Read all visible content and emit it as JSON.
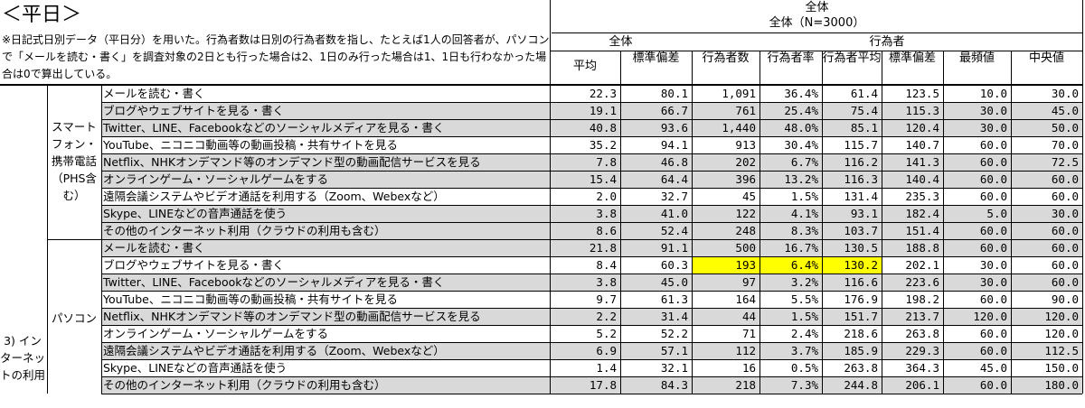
{
  "title": "＜平日＞",
  "note": "※日記式日別データ（平日分）を用いた。行為者数は日別の行為者数を指し、たとえば1人の回答者が、パソコンで「メールを読む・書く」を調査対象の2日とも行った場合は2、1日のみ行った場合は1、1日も行わなかった場合は0で算出している。",
  "header": {
    "all": "全体",
    "all_n": "全体（N=3000）",
    "sub_all": "全体",
    "sub_actor": "行為者",
    "cols": [
      "平均",
      "標準偏差",
      "行為者数",
      "行為者率",
      "行為者平均",
      "標準偏差",
      "最頻値",
      "中央値"
    ]
  },
  "section_label": "3) インターネットの利用",
  "groups": [
    {
      "label": "スマートフォン・携帯電話（PHS含む）",
      "rows": [
        {
          "item": "メールを読む・書く",
          "v": [
            "22.3",
            "80.1",
            "1,091",
            "36.4%",
            "61.4",
            "123.5",
            "10.0",
            "30.0"
          ]
        },
        {
          "item": "ブログやウェブサイトを見る・書く",
          "v": [
            "19.1",
            "66.7",
            "761",
            "25.4%",
            "75.4",
            "115.3",
            "30.0",
            "45.0"
          ]
        },
        {
          "item": "Twitter、LINE、Facebookなどのソーシャルメディアを見る・書く",
          "v": [
            "40.8",
            "93.6",
            "1,440",
            "48.0%",
            "85.1",
            "120.4",
            "30.0",
            "50.0"
          ]
        },
        {
          "item": "YouTube、ニコニコ動画等の動画投稿・共有サイトを見る",
          "v": [
            "35.2",
            "94.1",
            "913",
            "30.4%",
            "115.7",
            "140.7",
            "60.0",
            "70.0"
          ]
        },
        {
          "item": "Netflix、NHKオンデマンド等のオンデマンド型の動画配信サービスを見る",
          "v": [
            "7.8",
            "46.8",
            "202",
            "6.7%",
            "116.2",
            "141.3",
            "60.0",
            "72.5"
          ]
        },
        {
          "item": "オンラインゲーム・ソーシャルゲームをする",
          "v": [
            "15.4",
            "64.4",
            "396",
            "13.2%",
            "116.3",
            "140.4",
            "60.0",
            "60.0"
          ]
        },
        {
          "item": "遠隔会議システムやビデオ通話を利用する（Zoom、Webexなど）",
          "v": [
            "2.0",
            "32.7",
            "45",
            "1.5%",
            "131.4",
            "235.3",
            "60.0",
            "60.0"
          ]
        },
        {
          "item": "Skype、LINEなどの音声通話を使う",
          "v": [
            "3.8",
            "41.0",
            "122",
            "4.1%",
            "93.1",
            "182.4",
            "5.0",
            "30.0"
          ]
        },
        {
          "item": "その他のインターネット利用（クラウドの利用も含む）",
          "v": [
            "8.6",
            "52.4",
            "248",
            "8.3%",
            "103.7",
            "151.4",
            "60.0",
            "60.0"
          ]
        }
      ]
    },
    {
      "label": "パソコン",
      "rows": [
        {
          "item": "メールを読む・書く",
          "v": [
            "21.8",
            "91.1",
            "500",
            "16.7%",
            "130.5",
            "188.8",
            "60.0",
            "60.0"
          ]
        },
        {
          "item": "ブログやウェブサイトを見る・書く",
          "v": [
            "8.4",
            "60.3",
            "193",
            "6.4%",
            "130.2",
            "202.1",
            "30.0",
            "60.0"
          ]
        },
        {
          "item": "Twitter、LINE、Facebookなどのソーシャルメディアを見る・書く",
          "v": [
            "3.8",
            "45.0",
            "97",
            "3.2%",
            "116.6",
            "223.6",
            "30.0",
            "60.0"
          ]
        },
        {
          "item": "YouTube、ニコニコ動画等の動画投稿・共有サイトを見る",
          "v": [
            "9.7",
            "61.3",
            "164",
            "5.5%",
            "176.9",
            "198.2",
            "60.0",
            "90.0"
          ]
        },
        {
          "item": "Netflix、NHKオンデマンド等のオンデマンド型の動画配信サービスを見る",
          "v": [
            "2.2",
            "31.4",
            "44",
            "1.5%",
            "151.7",
            "213.7",
            "120.0",
            "120.0"
          ]
        },
        {
          "item": "オンラインゲーム・ソーシャルゲームをする",
          "v": [
            "5.2",
            "52.2",
            "71",
            "2.4%",
            "218.6",
            "263.8",
            "60.0",
            "120.0"
          ]
        },
        {
          "item": "遠隔会議システムやビデオ通話を利用する（Zoom、Webexなど）",
          "v": [
            "6.9",
            "57.1",
            "112",
            "3.7%",
            "185.9",
            "229.3",
            "60.0",
            "112.5"
          ]
        },
        {
          "item": "Skype、LINEなどの音声通話を使う",
          "v": [
            "1.4",
            "32.1",
            "16",
            "0.5%",
            "263.8",
            "364.3",
            "45.0",
            "150.0"
          ]
        },
        {
          "item": "その他のインターネット利用（クラウドの利用も含む）",
          "v": [
            "17.8",
            "84.3",
            "218",
            "7.3%",
            "244.8",
            "206.1",
            "60.0",
            "180.0"
          ]
        }
      ]
    }
  ],
  "shaded_rows": [
    1,
    2,
    4,
    5,
    7,
    8,
    9,
    11,
    13,
    15,
    17
  ],
  "highlights": [
    [
      1,
      2
    ],
    [
      1,
      3
    ],
    [
      1,
      4
    ],
    [
      10,
      2
    ],
    [
      10,
      3
    ],
    [
      10,
      4
    ]
  ],
  "colors": {
    "shade": "#d9d9d9",
    "highlight": "#ffff00",
    "grid": "#000000"
  }
}
